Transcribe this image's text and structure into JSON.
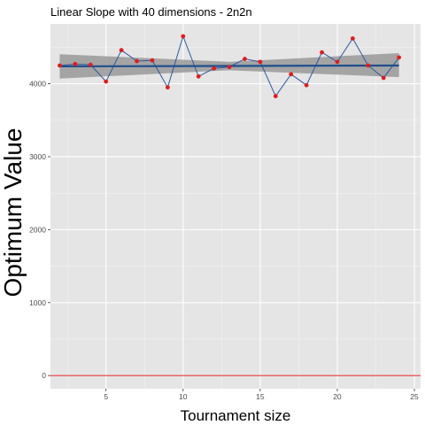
{
  "chart_data": {
    "type": "line",
    "title": "Linear Slope with 40 dimensions -  2n2n",
    "xlabel": "Tournament size",
    "ylabel": "Optimum Value",
    "xlim": [
      1.4,
      25.4
    ],
    "ylim": [
      -180,
      4820
    ],
    "x_ticks": [
      5,
      10,
      15,
      20,
      25
    ],
    "y_ticks": [
      0,
      1000,
      2000,
      3000,
      4000
    ],
    "x_tick_labels": [
      "5",
      "10",
      "15",
      "20",
      "25"
    ],
    "y_tick_labels": [
      "0",
      "1000",
      "2000",
      "3000",
      "4000"
    ],
    "grid": true,
    "series": [
      {
        "x": [
          2,
          3,
          4,
          5,
          6,
          7,
          8,
          9,
          10,
          11,
          12,
          13,
          14,
          15,
          16,
          17,
          18,
          19,
          20,
          21,
          22,
          23,
          24
        ],
        "y": [
          4250,
          4270,
          4260,
          4030,
          4460,
          4310,
          4320,
          3950,
          4650,
          4100,
          4210,
          4230,
          4340,
          4300,
          3830,
          4130,
          3980,
          4430,
          4300,
          4620,
          4250,
          4080,
          4360
        ]
      }
    ],
    "trend_line": {
      "x": [
        2,
        24
      ],
      "y": [
        4238,
        4250
      ]
    },
    "confidence_band": {
      "x": [
        2,
        13,
        24
      ],
      "lower": [
        4070,
        4185,
        4090
      ],
      "upper": [
        4405,
        4300,
        4420
      ]
    },
    "reference_line": {
      "y": 0
    },
    "colors": {
      "panel": "#e5e5e5",
      "grid_major": "#ffffff",
      "points": "#e41a1c",
      "line": "#2c5aa0",
      "trend": "#1f4e8c",
      "band": "#999999",
      "reference": "#e8333a"
    }
  }
}
